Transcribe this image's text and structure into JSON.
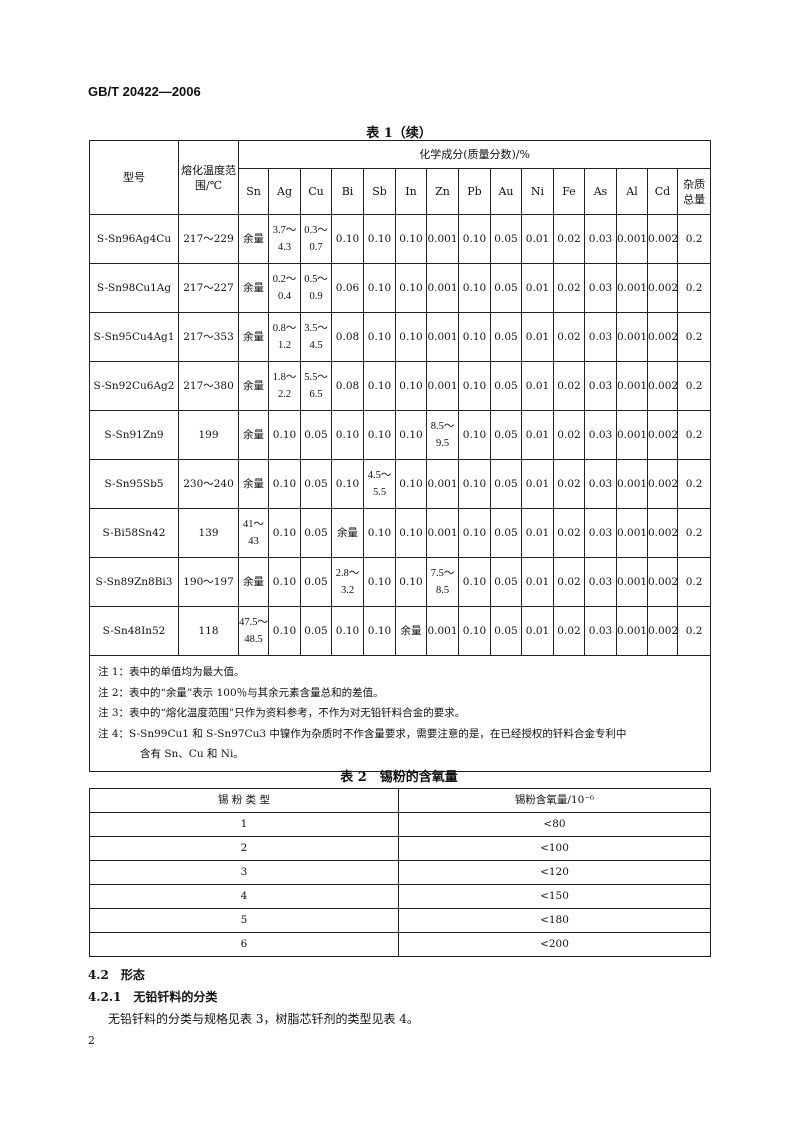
{
  "header": "GB/T 20422—2006",
  "table1": {
    "caption": "表 1（续）",
    "col_model": "型号",
    "col_temp": "熔化温度范围/℃",
    "group": "化学成分(质量分数)/%",
    "elements": [
      "Sn",
      "Ag",
      "Cu",
      "Bi",
      "Sb",
      "In",
      "Zn",
      "Pb",
      "Au",
      "Ni",
      "Fe",
      "As",
      "Al",
      "Cd",
      "杂质总量"
    ],
    "rows": [
      [
        "S-Sn96Ag4Cu",
        "217～229",
        "余量",
        "3.7～4.3",
        "0.3～0.7",
        "0.10",
        "0.10",
        "0.10",
        "0.001",
        "0.10",
        "0.05",
        "0.01",
        "0.02",
        "0.03",
        "0.001",
        "0.002",
        "0.2"
      ],
      [
        "S-Sn98Cu1Ag",
        "217～227",
        "余量",
        "0.2～0.4",
        "0.5～0.9",
        "0.06",
        "0.10",
        "0.10",
        "0.001",
        "0.10",
        "0.05",
        "0.01",
        "0.02",
        "0.03",
        "0.001",
        "0.002",
        "0.2"
      ],
      [
        "S-Sn95Cu4Ag1",
        "217～353",
        "余量",
        "0.8～1.2",
        "3.5～4.5",
        "0.08",
        "0.10",
        "0.10",
        "0.001",
        "0.10",
        "0.05",
        "0.01",
        "0.02",
        "0.03",
        "0.001",
        "0.002",
        "0.2"
      ],
      [
        "S-Sn92Cu6Ag2",
        "217～380",
        "余量",
        "1.8～2.2",
        "5.5～6.5",
        "0.08",
        "0.10",
        "0.10",
        "0.001",
        "0.10",
        "0.05",
        "0.01",
        "0.02",
        "0.03",
        "0.001",
        "0.002",
        "0.2"
      ],
      [
        "S-Sn91Zn9",
        "199",
        "余量",
        "0.10",
        "0.05",
        "0.10",
        "0.10",
        "0.10",
        "8.5～9.5",
        "0.10",
        "0.05",
        "0.01",
        "0.02",
        "0.03",
        "0.001",
        "0.002",
        "0.2"
      ],
      [
        "S-Sn95Sb5",
        "230～240",
        "余量",
        "0.10",
        "0.05",
        "0.10",
        "4.5～5.5",
        "0.10",
        "0.001",
        "0.10",
        "0.05",
        "0.01",
        "0.02",
        "0.03",
        "0.001",
        "0.002",
        "0.2"
      ],
      [
        "S-Bi58Sn42",
        "139",
        "41～43",
        "0.10",
        "0.05",
        "余量",
        "0.10",
        "0.10",
        "0.001",
        "0.10",
        "0.05",
        "0.01",
        "0.02",
        "0.03",
        "0.001",
        "0.002",
        "0.2"
      ],
      [
        "S-Sn89Zn8Bi3",
        "190～197",
        "余量",
        "0.10",
        "0.05",
        "2.8～3.2",
        "0.10",
        "0.10",
        "7.5～8.5",
        "0.10",
        "0.05",
        "0.01",
        "0.02",
        "0.03",
        "0.001",
        "0.002",
        "0.2"
      ],
      [
        "S-Sn48In52",
        "118",
        "47.5～48.5",
        "0.10",
        "0.05",
        "0.10",
        "0.10",
        "余量",
        "0.001",
        "0.10",
        "0.05",
        "0.01",
        "0.02",
        "0.03",
        "0.001",
        "0.002",
        "0.2"
      ]
    ],
    "notes": [
      "注 1：表中的单值均为最大值。",
      "注 2：表中的“余量”表示 100％与其余元素含量总和的差值。",
      "注 3：表中的“熔化温度范围”只作为资料参考，不作为对无铅钎料合金的要求。",
      "注 4：S-Sn99Cu1 和 S-Sn97Cu3 中镍作为杂质时不作含量要求，需要注意的是，在已经授权的钎料合金专利中",
      "含有 Sn、Cu 和 Ni。"
    ]
  },
  "table2": {
    "caption": "表 2　锡粉的含氧量",
    "headers": [
      "锡 粉 类 型",
      "锡粉含氧量/10⁻⁶"
    ],
    "rows": [
      [
        "1",
        "<80"
      ],
      [
        "2",
        "<100"
      ],
      [
        "3",
        "<120"
      ],
      [
        "4",
        "<150"
      ],
      [
        "5",
        "<180"
      ],
      [
        "6",
        "<200"
      ]
    ]
  },
  "section": {
    "h1": "4.2　形态",
    "h2": "4.2.1　无铅钎料的分类",
    "p": "无铅钎料的分类与规格见表 3，树脂芯钎剂的类型见表 4。"
  },
  "page_number": "2"
}
